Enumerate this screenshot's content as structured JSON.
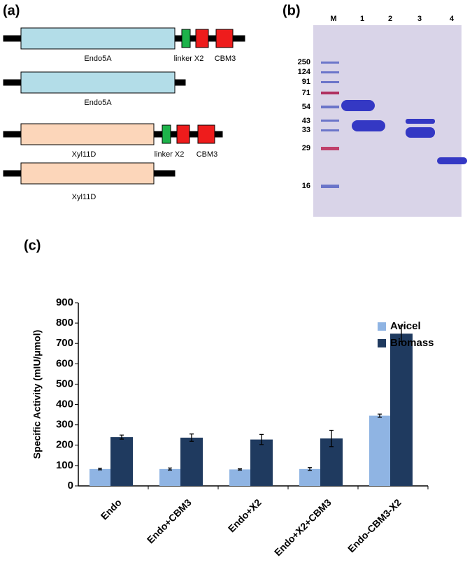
{
  "panels": {
    "a": "(a)",
    "b": "(b)",
    "c": "(c)"
  },
  "diagram": {
    "constructs": [
      {
        "name": "Endo5A",
        "linker": "linker X2",
        "cbm": "CBM3"
      },
      {
        "name": "Endo5A"
      },
      {
        "name": "Xyl11D",
        "linker": "linker X2",
        "cbm": "CBM3"
      },
      {
        "name": "Xyl11D"
      }
    ]
  },
  "gel": {
    "lanes": [
      "M",
      "1",
      "2",
      "3",
      "4"
    ],
    "markers": [
      "250",
      "124",
      "91",
      "71",
      "54",
      "43",
      "33",
      "29",
      "16"
    ]
  },
  "chart_data": {
    "type": "bar",
    "categories": [
      "Endo",
      "Endo+CBM3",
      "Endo+X2",
      "Endo+X2+CBM3",
      "Endo-CBM3-X2"
    ],
    "series": [
      {
        "name": "Avicel",
        "color": "#8fb4e3",
        "values": [
          83,
          83,
          81,
          83,
          345
        ],
        "errors": [
          4,
          5,
          3,
          7,
          8
        ]
      },
      {
        "name": "Biomass",
        "color": "#1f3a5f",
        "values": [
          240,
          237,
          228,
          233,
          748
        ],
        "errors": [
          10,
          18,
          25,
          40,
          38
        ]
      }
    ],
    "ylabel": "Specific Activity  (mIU/μmol)",
    "ylim": [
      0,
      900
    ],
    "yticks": [
      0,
      100,
      200,
      300,
      400,
      500,
      600,
      700,
      800,
      900
    ],
    "legend": "upper right"
  }
}
